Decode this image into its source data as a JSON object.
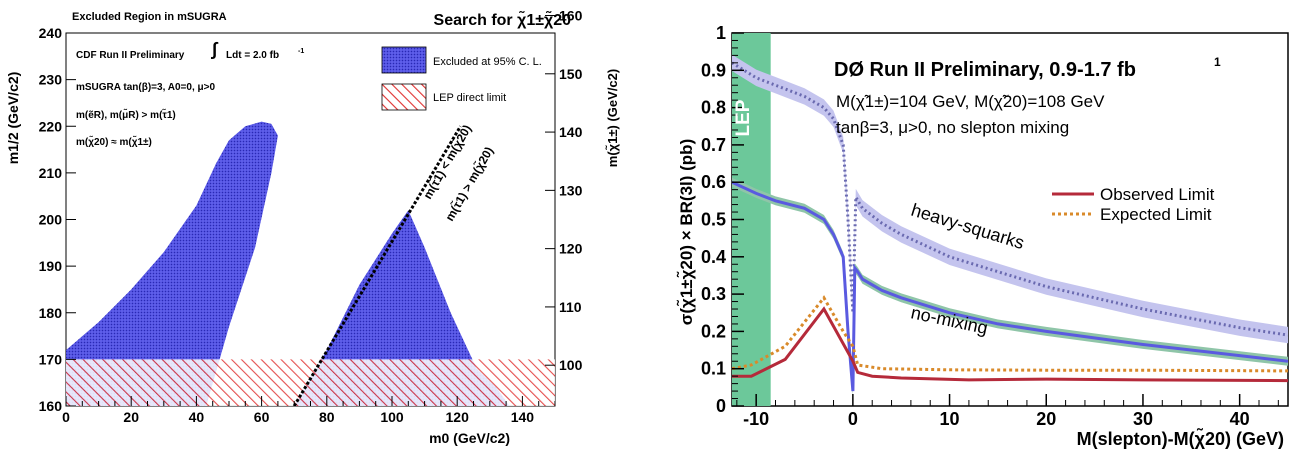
{
  "chart_data": [
    {
      "type": "area",
      "title": "Search for χ̃1±χ̃20",
      "subtitle": "Excluded Region in mSUGRA",
      "xlabel": "m0 (GeV/c2)",
      "ylabel": "m1/2 (GeV/c2)",
      "ylabel_right": "m(χ̃1±) (GeV/c2)",
      "xlim": [
        0,
        150
      ],
      "ylim": [
        160,
        240
      ],
      "xticks": [
        0,
        20,
        40,
        60,
        80,
        100,
        120,
        140
      ],
      "yticks": [
        160,
        170,
        180,
        190,
        200,
        210,
        220,
        230,
        240
      ],
      "yticks_right": [
        100,
        110,
        120,
        130,
        140,
        150,
        160
      ],
      "annotations": {
        "experiment": "CDF Run II Preliminary",
        "lumi": "Ldt = 2.0 fb",
        "lumi_exp": "-1",
        "model": "mSUGRA tan(β)=3, A0=0, μ>0",
        "mass_order": "m(ẽR), m(μ̃R) > m(τ̃1)",
        "mass_equal": "m(χ̃20) ≈ m(χ̃1±)",
        "boundary_upper": "m(τ̃1) < m(χ̃20)",
        "boundary_lower": "m(τ̃1) > m(χ̃20)"
      },
      "legend": {
        "placement": "top-right",
        "entries": [
          "Excluded at 95% C. L.",
          "LEP direct limit"
        ]
      },
      "colors": {
        "excluded": "#4a4ad8",
        "lep": "#e03030",
        "boundary": "#000000"
      },
      "series": [
        {
          "name": "Excluded at 95% C. L.",
          "region": "left",
          "values": [
            [
              0,
              172
            ],
            [
              10,
              178
            ],
            [
              20,
              185
            ],
            [
              30,
              193
            ],
            [
              40,
              203
            ],
            [
              46,
              212
            ],
            [
              50,
              217
            ],
            [
              55,
              220
            ],
            [
              60,
              221
            ],
            [
              63,
              220.5
            ],
            [
              65,
              218
            ],
            [
              63,
              210
            ],
            [
              58,
              194
            ],
            [
              50,
              177
            ],
            [
              43,
              160
            ],
            [
              0,
              160
            ]
          ]
        },
        {
          "name": "Excluded at 95% C. L.",
          "region": "right",
          "values": [
            [
              70,
              160
            ],
            [
              80,
              172
            ],
            [
              90,
              186
            ],
            [
              100,
              197
            ],
            [
              105,
              202
            ],
            [
              110,
              194
            ],
            [
              118,
              180
            ],
            [
              126,
              168
            ],
            [
              132,
              164
            ],
            [
              136,
              160
            ]
          ]
        },
        {
          "name": "LEP direct limit",
          "values": [
            [
              0,
              160
            ],
            [
              150,
              160
            ],
            [
              150,
              170
            ],
            [
              0,
              170
            ]
          ]
        },
        {
          "name": "boundary",
          "values": [
            [
              70,
              160
            ],
            [
              121,
              220
            ]
          ]
        }
      ]
    },
    {
      "type": "line",
      "title": "DØ Run II Preliminary, 0.9-1.7 fb",
      "title_exp": "1",
      "xlabel": "M(slepton)-M(χ̃20) (GeV)",
      "ylabel": "σ(χ̃1±χ̃20) × BR(3l) (pb)",
      "xlim": [
        -12.5,
        45
      ],
      "ylim": [
        0,
        1
      ],
      "xticks": [
        -10,
        0,
        10,
        20,
        30,
        40
      ],
      "yticks": [
        0,
        0.1,
        0.2,
        0.3,
        0.4,
        0.5,
        0.6,
        0.7,
        0.8,
        0.9,
        1
      ],
      "annotations": {
        "masses": "M(χ̃1±)=104 GeV, M(χ̃20)=108 GeV",
        "params": "tanβ=3, μ>0, no slepton mixing",
        "lep": "LEP",
        "heavy": "heavy-squarks",
        "nomix": "no-mixing"
      },
      "lep_band": [
        -12.5,
        -8.5
      ],
      "legend": {
        "placement": "right",
        "entries": [
          "Observed Limit",
          "Expected Limit"
        ]
      },
      "colors": {
        "observed": "#b52a3a",
        "expected": "#d98a2a",
        "theory": "#5a5ae0",
        "band": "#c4c4ee",
        "lep": "#6cc89a"
      },
      "series": [
        {
          "name": "Observed Limit",
          "x": [
            -12.5,
            -10.5,
            -7,
            -3,
            0,
            0.5,
            2,
            5,
            12,
            20,
            30,
            45
          ],
          "y": [
            0.08,
            0.08,
            0.125,
            0.26,
            0.12,
            0.09,
            0.08,
            0.075,
            0.07,
            0.072,
            0.07,
            0.068
          ]
        },
        {
          "name": "Expected Limit",
          "x": [
            -12.5,
            -10.5,
            -7,
            -3,
            -1,
            0,
            0.5,
            3,
            10,
            20,
            30,
            45
          ],
          "y": [
            0.1,
            0.11,
            0.16,
            0.29,
            0.2,
            0.16,
            0.11,
            0.1,
            0.097,
            0.096,
            0.096,
            0.094
          ]
        },
        {
          "name": "heavy-squarks",
          "x": [
            -12.5,
            -10,
            -8,
            -5,
            -3,
            -2,
            -1,
            -0.5,
            0,
            0.3,
            1,
            3,
            5,
            10,
            15,
            20,
            30,
            40,
            45
          ],
          "y": [
            0.92,
            0.88,
            0.86,
            0.83,
            0.8,
            0.77,
            0.7,
            0.5,
            0.25,
            0.56,
            0.53,
            0.49,
            0.46,
            0.4,
            0.36,
            0.32,
            0.26,
            0.21,
            0.19
          ]
        },
        {
          "name": "no-mixing",
          "x": [
            -12.5,
            -10,
            -8,
            -5,
            -3,
            -2,
            -1,
            -0.5,
            0,
            0.2,
            0.5,
            1,
            3,
            5,
            10,
            15,
            20,
            30,
            40,
            45
          ],
          "y": [
            0.6,
            0.57,
            0.55,
            0.53,
            0.5,
            0.46,
            0.4,
            0.2,
            0.04,
            0.37,
            0.36,
            0.34,
            0.31,
            0.29,
            0.25,
            0.22,
            0.2,
            0.165,
            0.135,
            0.12
          ]
        }
      ]
    }
  ]
}
